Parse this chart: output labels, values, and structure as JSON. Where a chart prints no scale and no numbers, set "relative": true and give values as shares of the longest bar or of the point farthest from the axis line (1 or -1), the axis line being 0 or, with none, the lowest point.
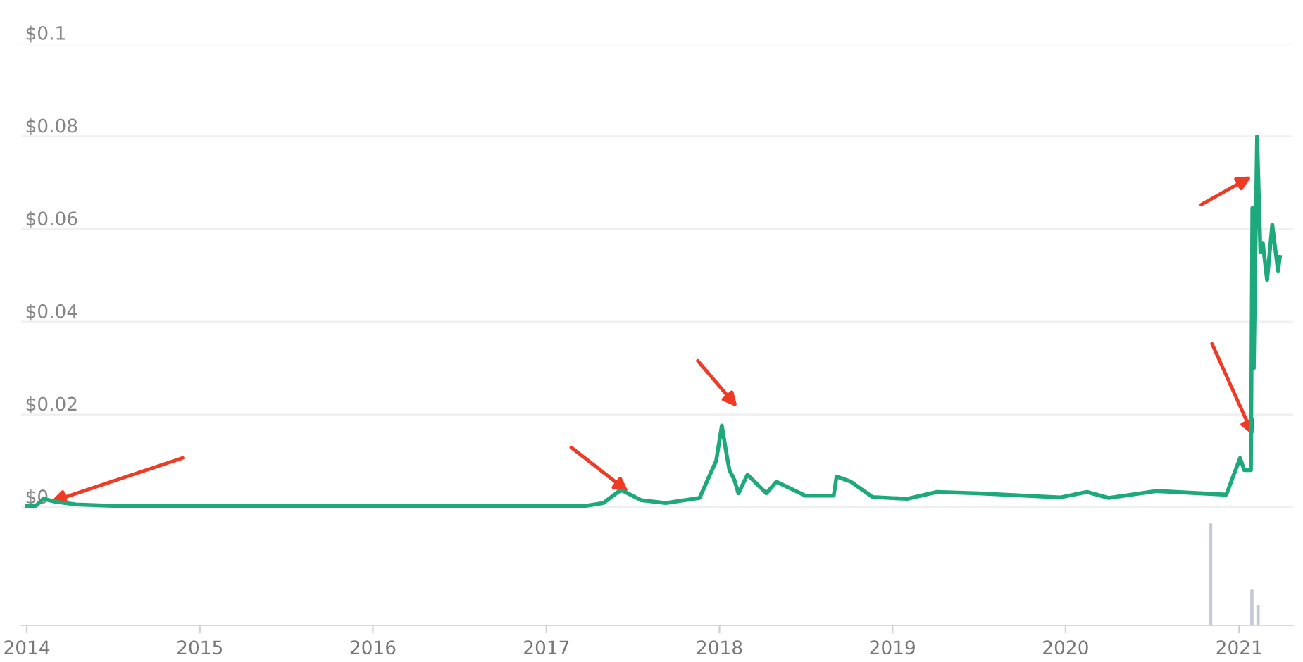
{
  "chart_data": [
    {
      "type": "line",
      "x": [
        "2014-01-01",
        "2014-01-20",
        "2014-02-05",
        "2014-03-01",
        "2014-04-15",
        "2014-07-01",
        "2015-01-01",
        "2016-01-01",
        "2017-01-01",
        "2017-03-20",
        "2017-05-01",
        "2017-06-01",
        "2017-06-10",
        "2017-07-20",
        "2017-09-10",
        "2017-11-20",
        "2017-12-25",
        "2018-01-06",
        "2018-01-15",
        "2018-01-22",
        "2018-02-01",
        "2018-02-10",
        "2018-03-01",
        "2018-04-10",
        "2018-05-01",
        "2018-07-01",
        "2018-08-30",
        "2018-09-05",
        "2018-10-05",
        "2018-11-20",
        "2019-02-01",
        "2019-04-05",
        "2019-07-01",
        "2019-12-20",
        "2020-02-15",
        "2020-04-01",
        "2020-07-10",
        "2020-12-05",
        "2021-01-03",
        "2021-01-12",
        "2021-01-26",
        "2021-01-29",
        "2021-02-01",
        "2021-02-08",
        "2021-02-15",
        "2021-02-20",
        "2021-03-01",
        "2021-03-12",
        "2021-03-18",
        "2021-03-24",
        "2021-03-28"
      ],
      "values": [
        0.0003,
        0.0003,
        0.0018,
        0.0012,
        0.0006,
        0.0003,
        0.0002,
        0.0002,
        0.0002,
        0.0002,
        0.0009,
        0.0033,
        0.0036,
        0.0015,
        0.0009,
        0.002,
        0.01,
        0.0176,
        0.012,
        0.008,
        0.006,
        0.003,
        0.007,
        0.003,
        0.0055,
        0.0025,
        0.0025,
        0.0066,
        0.0055,
        0.0022,
        0.0018,
        0.0033,
        0.003,
        0.0021,
        0.0033,
        0.002,
        0.0035,
        0.0027,
        0.0106,
        0.008,
        0.008,
        0.0645,
        0.03,
        0.08,
        0.055,
        0.057,
        0.049,
        0.061,
        0.056,
        0.051,
        0.054
      ],
      "color": "#1ea97c",
      "xlim": [
        "2013-12-20",
        "2021-04-25"
      ],
      "xticks": [
        {
          "value": "2014-01-01",
          "label": "2014"
        },
        {
          "value": "2015-01-01",
          "label": "2015"
        },
        {
          "value": "2016-01-01",
          "label": "2016"
        },
        {
          "value": "2017-01-01",
          "label": "2017"
        },
        {
          "value": "2018-01-01",
          "label": "2018"
        },
        {
          "value": "2019-01-01",
          "label": "2019"
        },
        {
          "value": "2020-01-01",
          "label": "2020"
        },
        {
          "value": "2021-01-01",
          "label": "2021"
        }
      ],
      "ylim": [
        -0.0255,
        0.1
      ],
      "yticks": [
        {
          "value": 0,
          "label": "$0"
        },
        {
          "value": 0.02,
          "label": "$0.02"
        },
        {
          "value": 0.04,
          "label": "$0.04"
        },
        {
          "value": 0.06,
          "label": "$0.06"
        },
        {
          "value": 0.08,
          "label": "$0.08"
        },
        {
          "value": 0.1,
          "label": "$0.1"
        }
      ],
      "grid": "y",
      "marker": "none",
      "line_style": "solid"
    },
    {
      "type": "bar",
      "relative": true,
      "x": [
        "2020-11-02",
        "2021-01-28",
        "2021-02-10"
      ],
      "values": [
        1,
        0.35,
        0.2
      ],
      "color": "#c5cad6",
      "xlim": [
        "2013-12-20",
        "2021-04-25"
      ]
    }
  ]
}
